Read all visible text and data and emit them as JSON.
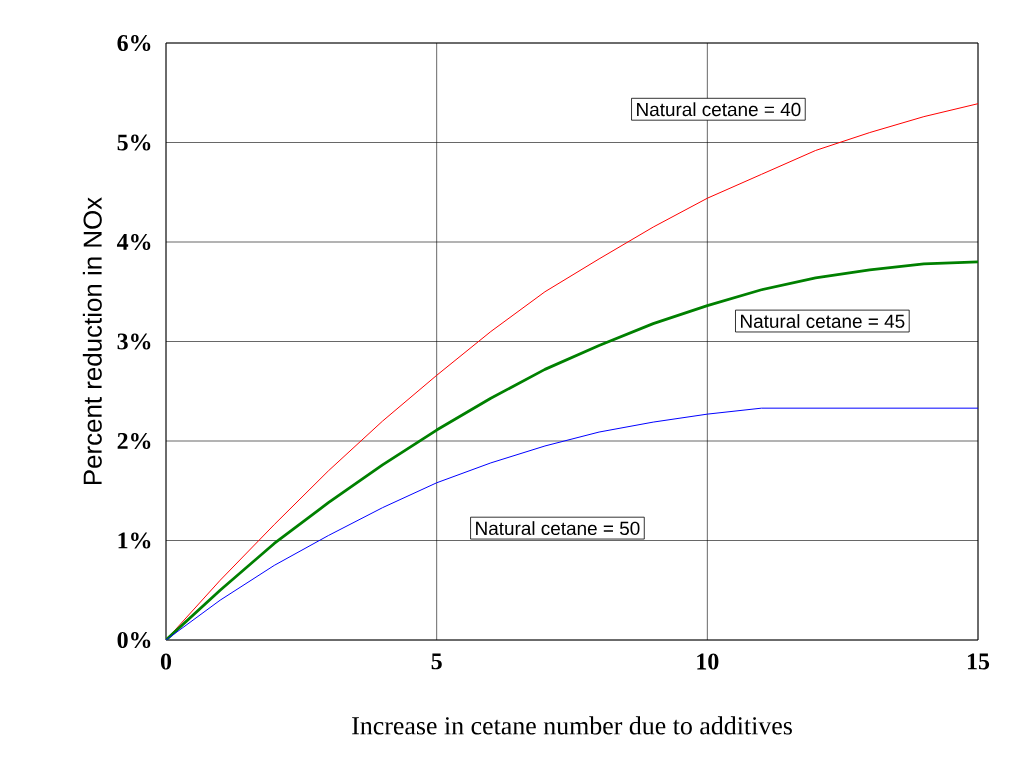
{
  "chart_data": {
    "type": "line",
    "xlabel": "Increase in cetane number due to additives",
    "ylabel": "Percent reduction in NOx",
    "x": [
      0,
      1,
      2,
      3,
      4,
      5,
      6,
      7,
      8,
      9,
      10,
      11,
      12,
      13,
      14,
      15
    ],
    "series": [
      {
        "name": "Natural cetane = 40",
        "color": "#ff0000",
        "values": [
          0,
          0.6,
          1.16,
          1.7,
          2.2,
          2.66,
          3.1,
          3.5,
          3.83,
          4.15,
          4.44,
          4.68,
          4.92,
          5.1,
          5.26,
          5.39
        ]
      },
      {
        "name": "Natural cetane = 45",
        "color": "#008000",
        "values": [
          0,
          0.5,
          0.97,
          1.38,
          1.76,
          2.11,
          2.43,
          2.72,
          2.96,
          3.18,
          3.36,
          3.52,
          3.64,
          3.72,
          3.78,
          3.8
        ]
      },
      {
        "name": "Natural cetane = 50",
        "color": "#0000ff",
        "values": [
          0,
          0.4,
          0.75,
          1.05,
          1.33,
          1.58,
          1.78,
          1.95,
          2.09,
          2.19,
          2.27,
          2.33,
          2.33,
          2.33,
          2.33,
          2.33
        ]
      }
    ],
    "xlim": [
      0,
      15
    ],
    "ylim": [
      0,
      6
    ],
    "xticks": [
      0,
      5,
      10,
      15
    ],
    "yticks": [
      {
        "value": 0,
        "label": "0%"
      },
      {
        "value": 1,
        "label": "1%"
      },
      {
        "value": 2,
        "label": "2%"
      },
      {
        "value": 3,
        "label": "3%"
      },
      {
        "value": 4,
        "label": "4%"
      },
      {
        "value": 5,
        "label": "5%"
      },
      {
        "value": 6,
        "label": "6%"
      }
    ],
    "grid": true,
    "legend": false,
    "marker": "none",
    "line_style": "solid"
  }
}
